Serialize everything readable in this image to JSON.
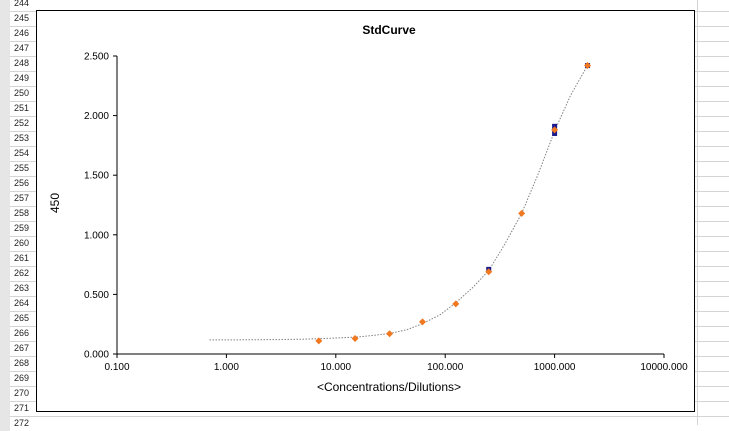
{
  "spreadsheet": {
    "row_numbers": [
      "244",
      "245",
      "246",
      "247",
      "248",
      "249",
      "250",
      "251",
      "252",
      "253",
      "254",
      "255",
      "256",
      "257",
      "258",
      "259",
      "260",
      "261",
      "262",
      "263",
      "264",
      "265",
      "266",
      "267",
      "268",
      "269",
      "270",
      "271",
      "272"
    ]
  },
  "chart_data": {
    "type": "scatter",
    "title": "StdCurve",
    "xlabel": "<Concentrations/Dilutions>",
    "ylabel": "450",
    "x_scale": "log",
    "xlim": [
      0.1,
      10000
    ],
    "ylim": [
      0,
      2.5
    ],
    "x_ticks": [
      "0.100",
      "1.000",
      "10.000",
      "100.000",
      "1000.000",
      "10000.000"
    ],
    "y_ticks": [
      "0.000",
      "0.500",
      "1.000",
      "1.500",
      "2.000",
      "2.500"
    ],
    "grid": false,
    "legend": "none",
    "colors": {
      "standard_marker": "#f07820",
      "replicate_marker": "#1a1a8c",
      "fit_line": "#808080"
    },
    "series": [
      {
        "marker": "diamond",
        "x": [
          7.0,
          15.0,
          31.0,
          62.0,
          125.0,
          250.0,
          500.0,
          1000.0,
          2000.0
        ],
        "y": [
          0.11,
          0.13,
          0.17,
          0.27,
          0.42,
          0.69,
          1.18,
          1.88,
          2.42
        ]
      },
      {
        "marker": "square",
        "x": [
          250.0,
          1000.0,
          1000.0,
          2000.0
        ],
        "y": [
          0.71,
          1.91,
          1.85,
          2.42
        ]
      }
    ],
    "fit_curve": {
      "style": "dotted",
      "x": [
        0.7,
        1.5,
        3,
        5,
        7,
        10,
        15,
        20,
        31,
        45,
        62,
        90,
        125,
        180,
        250,
        350,
        500,
        700,
        1000,
        1400,
        2000
      ],
      "y": [
        0.118,
        0.119,
        0.121,
        0.124,
        0.128,
        0.134,
        0.142,
        0.152,
        0.172,
        0.205,
        0.255,
        0.33,
        0.43,
        0.56,
        0.7,
        0.92,
        1.18,
        1.5,
        1.87,
        2.17,
        2.42
      ]
    }
  }
}
